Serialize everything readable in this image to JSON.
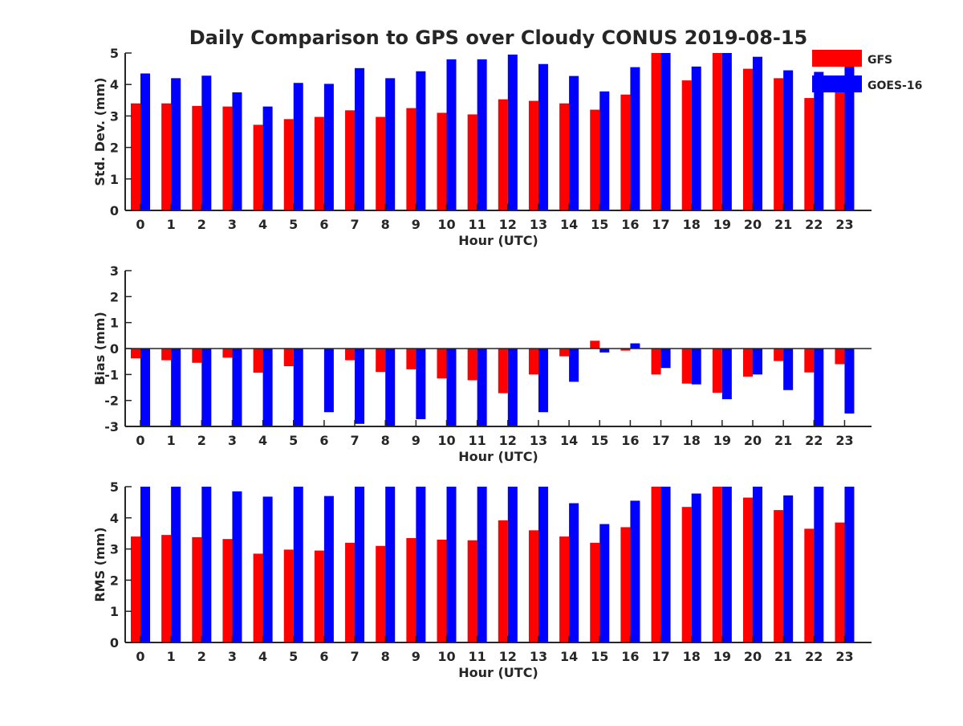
{
  "chart_data": {
    "type": "bar",
    "title": "Daily Comparison to GPS over Cloudy CONUS 2019-08-15",
    "legend": {
      "position": "top-right",
      "entries": [
        {
          "name": "GFS",
          "color": "#ff0000"
        },
        {
          "name": "GOES-16",
          "color": "#0000ff"
        }
      ]
    },
    "panels": [
      {
        "id": "std",
        "ylabel": "Std. Dev. (mm)",
        "xlabel": "Hour (UTC)",
        "ylim": [
          0,
          5
        ],
        "yticks": [
          0,
          1,
          2,
          3,
          4,
          5
        ],
        "categories": [
          "0",
          "1",
          "2",
          "3",
          "4",
          "5",
          "6",
          "7",
          "8",
          "9",
          "10",
          "11",
          "12",
          "13",
          "14",
          "15",
          "16",
          "17",
          "18",
          "19",
          "20",
          "21",
          "22",
          "23"
        ],
        "series": [
          {
            "name": "GFS",
            "color": "#ff0000",
            "values": [
              3.4,
              3.4,
              3.32,
              3.3,
              2.72,
              2.9,
              2.97,
              3.18,
              2.97,
              3.25,
              3.1,
              3.05,
              3.53,
              3.48,
              3.4,
              3.2,
              3.68,
              5.0,
              4.13,
              5.0,
              4.5,
              4.2,
              3.57,
              3.8
            ]
          },
          {
            "name": "GOES-16",
            "color": "#0000ff",
            "values": [
              4.35,
              4.2,
              4.28,
              3.75,
              3.3,
              4.05,
              4.02,
              4.52,
              4.2,
              4.42,
              4.8,
              4.8,
              4.95,
              4.65,
              4.27,
              3.78,
              4.55,
              5.0,
              4.57,
              5.0,
              4.88,
              4.45,
              4.4,
              4.6
            ]
          }
        ]
      },
      {
        "id": "bias",
        "ylabel": "Bias (mm)",
        "xlabel": "Hour (UTC)",
        "ylim": [
          -3,
          3
        ],
        "yticks": [
          -3,
          -2,
          -1,
          0,
          1,
          2,
          3
        ],
        "zero_line": true,
        "categories": [
          "0",
          "1",
          "2",
          "3",
          "4",
          "5",
          "6",
          "7",
          "8",
          "9",
          "10",
          "11",
          "12",
          "13",
          "14",
          "15",
          "16",
          "17",
          "18",
          "19",
          "20",
          "21",
          "22",
          "23"
        ],
        "series": [
          {
            "name": "GFS",
            "color": "#ff0000",
            "values": [
              -0.38,
              -0.45,
              -0.55,
              -0.35,
              -0.93,
              -0.68,
              0,
              -0.45,
              -0.9,
              -0.8,
              -1.15,
              -1.22,
              -1.72,
              -1.0,
              -0.3,
              0.3,
              -0.08,
              -1.0,
              -1.35,
              -1.7,
              -1.08,
              -0.48,
              -0.92,
              -0.6
            ]
          },
          {
            "name": "GOES-16",
            "color": "#0000ff",
            "values": [
              -3.0,
              -3.0,
              -3.0,
              -3.0,
              -3.0,
              -3.0,
              -2.45,
              -2.9,
              -3.0,
              -2.72,
              -3.0,
              -3.0,
              -3.0,
              -2.45,
              -1.28,
              -0.15,
              0.2,
              -0.75,
              -1.38,
              -1.95,
              -1.0,
              -1.6,
              -3.0,
              -2.5
            ]
          }
        ]
      },
      {
        "id": "rms",
        "ylabel": "RMS (mm)",
        "xlabel": "Hour (UTC)",
        "ylim": [
          0,
          5
        ],
        "yticks": [
          0,
          1,
          2,
          3,
          4,
          5
        ],
        "categories": [
          "0",
          "1",
          "2",
          "3",
          "4",
          "5",
          "6",
          "7",
          "8",
          "9",
          "10",
          "11",
          "12",
          "13",
          "14",
          "15",
          "16",
          "17",
          "18",
          "19",
          "20",
          "21",
          "22",
          "23"
        ],
        "series": [
          {
            "name": "GFS",
            "color": "#ff0000",
            "values": [
              3.4,
              3.45,
              3.38,
              3.32,
              2.85,
              2.98,
              2.95,
              3.2,
              3.1,
              3.35,
              3.3,
              3.28,
              3.92,
              3.6,
              3.4,
              3.2,
              3.7,
              5.0,
              4.35,
              5.0,
              4.65,
              4.25,
              3.65,
              3.85
            ]
          },
          {
            "name": "GOES-16",
            "color": "#0000ff",
            "values": [
              5.0,
              5.0,
              5.0,
              4.85,
              4.68,
              5.0,
              4.7,
              5.0,
              5.0,
              5.0,
              5.0,
              5.0,
              5.0,
              5.0,
              4.47,
              3.8,
              4.55,
              5.0,
              4.78,
              5.0,
              5.0,
              4.72,
              5.0,
              5.0
            ]
          }
        ]
      }
    ]
  }
}
